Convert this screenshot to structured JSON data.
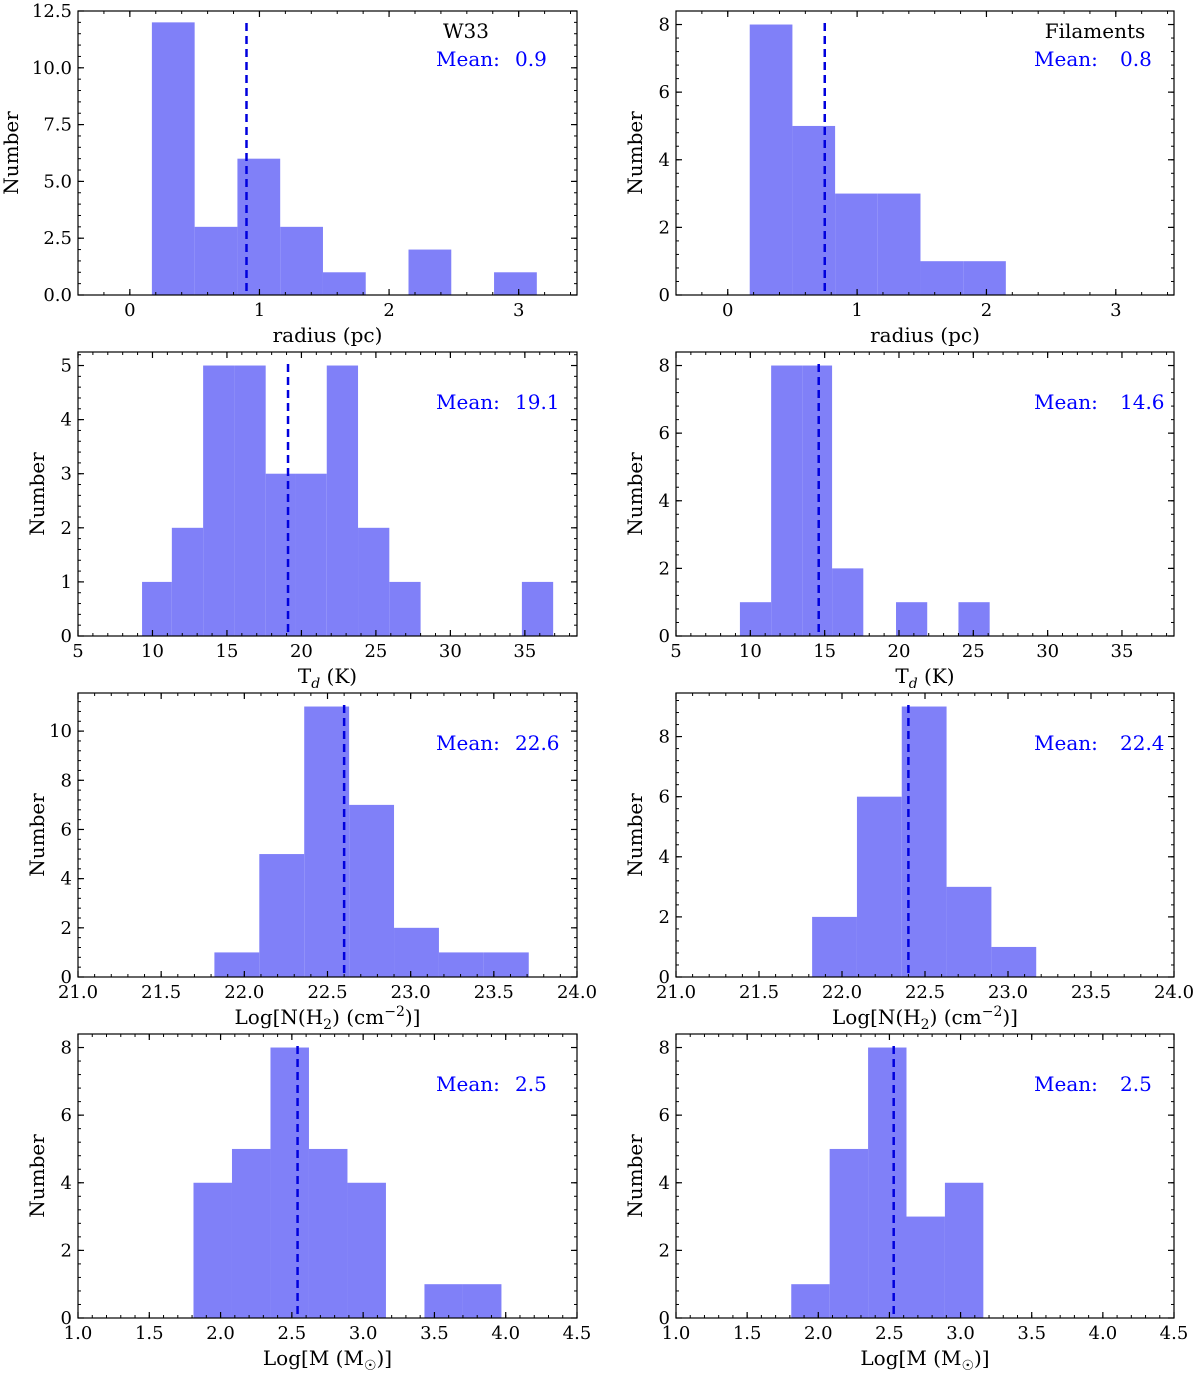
{
  "figure": {
    "colors": {
      "bar": "#8080f8",
      "mean_line": "#0000dd",
      "mean_text": "#0000ff",
      "axes": "#000000"
    }
  },
  "chart_data": [
    {
      "type": "bar",
      "id": "w33-radius",
      "annotation": "W33",
      "xlabel": "radius (pc)",
      "ylabel": "Number",
      "xlim": [
        -0.4,
        3.45
      ],
      "ylim": [
        0,
        12.5
      ],
      "xticks": [
        0,
        1,
        2,
        3
      ],
      "xtick_labels": [
        "0",
        "1",
        "2",
        "3"
      ],
      "yticks": [
        0,
        2.5,
        5,
        7.5,
        10,
        12.5
      ],
      "ytick_labels": [
        "0.0",
        "2.5",
        "5.0",
        "7.5",
        "10.0",
        "12.5"
      ],
      "bin_edges": [
        0.17,
        0.5,
        0.83,
        1.16,
        1.49,
        1.82,
        2.15,
        2.48,
        2.81,
        3.14
      ],
      "values": [
        12,
        3,
        6,
        3,
        1,
        0,
        2,
        0,
        1
      ],
      "mean": 0.9,
      "mean_label": "Mean:",
      "mean_value": "0.9"
    },
    {
      "type": "bar",
      "id": "filaments-radius",
      "annotation": "Filaments",
      "xlabel": "radius (pc)",
      "ylabel": "Number",
      "xlim": [
        -0.4,
        3.45
      ],
      "ylim": [
        0,
        8.4
      ],
      "xticks": [
        0,
        1,
        2,
        3
      ],
      "xtick_labels": [
        "0",
        "1",
        "2",
        "3"
      ],
      "yticks": [
        0,
        2,
        4,
        6,
        8
      ],
      "ytick_labels": [
        "0",
        "2",
        "4",
        "6",
        "8"
      ],
      "bin_edges": [
        0.17,
        0.5,
        0.83,
        1.16,
        1.49,
        1.82,
        2.15
      ],
      "values": [
        8,
        5,
        3,
        3,
        1,
        1
      ],
      "mean": 0.75,
      "mean_label": "Mean:",
      "mean_value": "0.8"
    },
    {
      "type": "bar",
      "id": "w33-td",
      "xlabel": "T_d (K)",
      "ylabel": "Number",
      "xlim": [
        5,
        38.5
      ],
      "ylim": [
        0,
        5.25
      ],
      "xticks": [
        5,
        10,
        15,
        20,
        25,
        30,
        35
      ],
      "xtick_labels": [
        "5",
        "10",
        "15",
        "20",
        "25",
        "30",
        "35"
      ],
      "yticks": [
        0,
        1,
        2,
        3,
        4,
        5
      ],
      "ytick_labels": [
        "0",
        "1",
        "2",
        "3",
        "4",
        "5"
      ],
      "bin_edges": [
        9.3,
        11.3,
        13.4,
        15.5,
        17.6,
        19.6,
        21.7,
        23.8,
        25.9,
        28.0,
        30.0,
        32.1,
        34.8,
        36.9
      ],
      "values": [
        1,
        2,
        5,
        5,
        3,
        3,
        5,
        2,
        1,
        0,
        0,
        0,
        1
      ],
      "mean": 19.1,
      "mean_label": "Mean:",
      "mean_value": "19.1"
    },
    {
      "type": "bar",
      "id": "filaments-td",
      "xlabel": "T_d (K)",
      "ylabel": "Number",
      "xlim": [
        5,
        38.5
      ],
      "ylim": [
        0,
        8.4
      ],
      "xticks": [
        5,
        10,
        15,
        20,
        25,
        30,
        35
      ],
      "xtick_labels": [
        "5",
        "10",
        "15",
        "20",
        "25",
        "30",
        "35"
      ],
      "yticks": [
        0,
        2,
        4,
        6,
        8
      ],
      "ytick_labels": [
        "0",
        "2",
        "4",
        "6",
        "8"
      ],
      "bin_edges": [
        9.3,
        11.4,
        13.5,
        15.5,
        17.6,
        19.8,
        21.9,
        24.0,
        26.1
      ],
      "values": [
        1,
        8,
        8,
        2,
        0,
        1,
        0,
        1
      ],
      "mean": 14.6,
      "mean_label": "Mean:",
      "mean_value": "14.6"
    },
    {
      "type": "bar",
      "id": "w33-nh2",
      "xlabel": "Log[N(H2) (cm-2)]",
      "ylabel": "Number",
      "xlim": [
        21.0,
        24.0
      ],
      "ylim": [
        0,
        11.55
      ],
      "xticks": [
        21.0,
        21.5,
        22.0,
        22.5,
        23.0,
        23.5,
        24.0
      ],
      "xtick_labels": [
        "21.0",
        "21.5",
        "22.0",
        "22.5",
        "23.0",
        "23.5",
        "24.0"
      ],
      "yticks": [
        0,
        2,
        4,
        6,
        8,
        10
      ],
      "ytick_labels": [
        "0",
        "2",
        "4",
        "6",
        "8",
        "10"
      ],
      "bin_edges": [
        21.82,
        22.09,
        22.36,
        22.63,
        22.9,
        23.17,
        23.44,
        23.71
      ],
      "values": [
        1,
        5,
        11,
        7,
        2,
        1,
        1
      ],
      "mean": 22.6,
      "mean_label": "Mean:",
      "mean_value": "22.6"
    },
    {
      "type": "bar",
      "id": "filaments-nh2",
      "xlabel": "Log[N(H2) (cm-2)]",
      "ylabel": "Number",
      "xlim": [
        21.0,
        24.0
      ],
      "ylim": [
        0,
        9.45
      ],
      "xticks": [
        21.0,
        21.5,
        22.0,
        22.5,
        23.0,
        23.5,
        24.0
      ],
      "xtick_labels": [
        "21.0",
        "21.5",
        "22.0",
        "22.5",
        "23.0",
        "23.5",
        "24.0"
      ],
      "yticks": [
        0,
        2,
        4,
        6,
        8
      ],
      "ytick_labels": [
        "0",
        "2",
        "4",
        "6",
        "8"
      ],
      "bin_edges": [
        21.82,
        22.09,
        22.36,
        22.63,
        22.9,
        23.17
      ],
      "values": [
        2,
        6,
        9,
        3,
        1
      ],
      "mean": 22.4,
      "mean_label": "Mean:",
      "mean_value": "22.4"
    },
    {
      "type": "bar",
      "id": "w33-mass",
      "xlabel": "Log[M (M☉)]",
      "ylabel": "Number",
      "xlim": [
        1.0,
        4.5
      ],
      "ylim": [
        0,
        8.4
      ],
      "xticks": [
        1.0,
        1.5,
        2.0,
        2.5,
        3.0,
        3.5,
        4.0,
        4.5
      ],
      "xtick_labels": [
        "1.0",
        "1.5",
        "2.0",
        "2.5",
        "3.0",
        "3.5",
        "4.0",
        "4.5"
      ],
      "yticks": [
        0,
        2,
        4,
        6,
        8
      ],
      "ytick_labels": [
        "0",
        "2",
        "4",
        "6",
        "8"
      ],
      "bin_edges": [
        1.81,
        2.08,
        2.35,
        2.62,
        2.89,
        3.16,
        3.43,
        3.7,
        3.97
      ],
      "values": [
        4,
        5,
        8,
        5,
        4,
        0,
        1,
        1
      ],
      "mean": 2.54,
      "mean_label": "Mean:",
      "mean_value": "2.5"
    },
    {
      "type": "bar",
      "id": "filaments-mass",
      "xlabel": "Log[M (M☉)]",
      "ylabel": "Number",
      "xlim": [
        1.0,
        4.5
      ],
      "ylim": [
        0,
        8.4
      ],
      "xticks": [
        1.0,
        1.5,
        2.0,
        2.5,
        3.0,
        3.5,
        4.0,
        4.5
      ],
      "xtick_labels": [
        "1.0",
        "1.5",
        "2.0",
        "2.5",
        "3.0",
        "3.5",
        "4.0",
        "4.5"
      ],
      "yticks": [
        0,
        2,
        4,
        6,
        8
      ],
      "ytick_labels": [
        "0",
        "2",
        "4",
        "6",
        "8"
      ],
      "bin_edges": [
        1.81,
        2.08,
        2.35,
        2.62,
        2.89,
        3.16
      ],
      "values": [
        1,
        5,
        8,
        3,
        4
      ],
      "mean": 2.53,
      "mean_label": "Mean:",
      "mean_value": "2.5"
    }
  ]
}
